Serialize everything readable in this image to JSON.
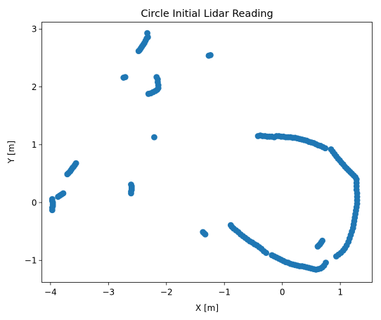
{
  "chart_data": {
    "type": "scatter",
    "title": "Circle Initial Lidar Reading",
    "xlabel": "X [m]",
    "ylabel": "Y [m]",
    "xlim": [
      -4.15,
      1.55
    ],
    "ylim": [
      -1.38,
      3.12
    ],
    "xticks": [
      -4,
      -3,
      -2,
      -1,
      0,
      1
    ],
    "yticks": [
      -1,
      0,
      1,
      2,
      3
    ],
    "grid": false,
    "marker_color": "#1f77b4",
    "series": [
      {
        "points": [
          [
            -2.33,
            2.93
          ],
          [
            -2.32,
            2.86
          ],
          [
            -2.34,
            2.84
          ],
          [
            -2.36,
            2.8
          ],
          [
            -2.38,
            2.76
          ],
          [
            -2.4,
            2.73
          ],
          [
            -2.42,
            2.7
          ],
          [
            -2.44,
            2.67
          ],
          [
            -2.46,
            2.64
          ],
          [
            -2.48,
            2.62
          ],
          [
            -1.27,
            2.54
          ],
          [
            -1.24,
            2.55
          ],
          [
            -2.74,
            2.16
          ],
          [
            -2.71,
            2.17
          ],
          [
            -2.17,
            2.17
          ],
          [
            -2.15,
            2.13
          ],
          [
            -2.15,
            2.08
          ],
          [
            -2.14,
            2.03
          ],
          [
            -2.14,
            1.98
          ],
          [
            -2.16,
            1.95
          ],
          [
            -2.19,
            1.93
          ],
          [
            -2.23,
            1.91
          ],
          [
            -2.27,
            1.89
          ],
          [
            -2.31,
            1.88
          ],
          [
            -2.21,
            1.13
          ],
          [
            -3.56,
            0.68
          ],
          [
            -3.58,
            0.65
          ],
          [
            -3.6,
            0.62
          ],
          [
            -3.62,
            0.6
          ],
          [
            -3.64,
            0.57
          ],
          [
            -3.66,
            0.54
          ],
          [
            -3.69,
            0.51
          ],
          [
            -3.71,
            0.49
          ],
          [
            -3.78,
            0.16
          ],
          [
            -3.81,
            0.14
          ],
          [
            -3.84,
            0.12
          ],
          [
            -3.87,
            0.1
          ],
          [
            -3.97,
            0.06
          ],
          [
            -3.97,
            0.03
          ],
          [
            -3.96,
            0.0
          ],
          [
            -3.96,
            -0.03
          ],
          [
            -3.96,
            -0.06
          ],
          [
            -3.97,
            -0.09
          ],
          [
            -3.97,
            -0.13
          ],
          [
            -2.61,
            0.31
          ],
          [
            -2.6,
            0.28
          ],
          [
            -2.6,
            0.25
          ],
          [
            -2.6,
            0.22
          ],
          [
            -2.61,
            0.19
          ],
          [
            -2.61,
            0.16
          ],
          [
            -1.37,
            -0.51
          ],
          [
            -1.35,
            -0.53
          ],
          [
            -1.33,
            -0.55
          ],
          [
            -0.42,
            1.15
          ],
          [
            -0.38,
            1.16
          ],
          [
            -0.34,
            1.15
          ],
          [
            -0.3,
            1.15
          ],
          [
            -0.26,
            1.14
          ],
          [
            -0.22,
            1.14
          ],
          [
            -0.18,
            1.14
          ],
          [
            -0.14,
            1.13
          ],
          [
            -0.1,
            1.15
          ],
          [
            -0.06,
            1.15
          ],
          [
            -0.02,
            1.14
          ],
          [
            0.02,
            1.14
          ],
          [
            0.06,
            1.13
          ],
          [
            0.1,
            1.13
          ],
          [
            0.14,
            1.13
          ],
          [
            0.18,
            1.12
          ],
          [
            0.22,
            1.12
          ],
          [
            0.26,
            1.11
          ],
          [
            0.3,
            1.1
          ],
          [
            0.34,
            1.09
          ],
          [
            0.38,
            1.08
          ],
          [
            0.42,
            1.07
          ],
          [
            0.46,
            1.05
          ],
          [
            0.5,
            1.04
          ],
          [
            0.54,
            1.03
          ],
          [
            0.58,
            1.01
          ],
          [
            0.62,
            0.99
          ],
          [
            0.66,
            0.98
          ],
          [
            0.7,
            0.96
          ],
          [
            0.74,
            0.94
          ],
          [
            0.84,
            0.92
          ],
          [
            0.87,
            0.88
          ],
          [
            0.9,
            0.84
          ],
          [
            0.93,
            0.8
          ],
          [
            0.96,
            0.76
          ],
          [
            0.99,
            0.73
          ],
          [
            1.02,
            0.69
          ],
          [
            1.05,
            0.66
          ],
          [
            1.08,
            0.62
          ],
          [
            1.11,
            0.59
          ],
          [
            1.14,
            0.56
          ],
          [
            1.17,
            0.53
          ],
          [
            1.2,
            0.5
          ],
          [
            1.23,
            0.47
          ],
          [
            1.26,
            0.44
          ],
          [
            1.28,
            0.4
          ],
          [
            1.28,
            0.34
          ],
          [
            1.28,
            0.28
          ],
          [
            1.28,
            0.22
          ],
          [
            1.29,
            0.16
          ],
          [
            1.29,
            0.1
          ],
          [
            1.29,
            0.04
          ],
          [
            1.29,
            -0.02
          ],
          [
            1.28,
            -0.08
          ],
          [
            1.27,
            -0.14
          ],
          [
            1.26,
            -0.2
          ],
          [
            1.25,
            -0.26
          ],
          [
            1.24,
            -0.32
          ],
          [
            1.23,
            -0.38
          ],
          [
            1.22,
            -0.44
          ],
          [
            1.2,
            -0.5
          ],
          [
            1.18,
            -0.56
          ],
          [
            1.16,
            -0.62
          ],
          [
            1.14,
            -0.68
          ],
          [
            1.11,
            -0.74
          ],
          [
            1.08,
            -0.79
          ],
          [
            1.05,
            -0.83
          ],
          [
            1.01,
            -0.87
          ],
          [
            0.97,
            -0.9
          ],
          [
            0.93,
            -0.93
          ],
          [
            0.69,
            -0.66
          ],
          [
            0.67,
            -0.69
          ],
          [
            0.65,
            -0.72
          ],
          [
            0.63,
            -0.74
          ],
          [
            0.61,
            -0.76
          ],
          [
            0.75,
            -1.04
          ],
          [
            0.72,
            -1.09
          ],
          [
            0.69,
            -1.12
          ],
          [
            0.66,
            -1.14
          ],
          [
            0.62,
            -1.15
          ],
          [
            0.58,
            -1.16
          ],
          [
            0.54,
            -1.15
          ],
          [
            0.5,
            -1.14
          ],
          [
            0.46,
            -1.13
          ],
          [
            0.42,
            -1.12
          ],
          [
            0.38,
            -1.11
          ],
          [
            0.34,
            -1.1
          ],
          [
            0.3,
            -1.1
          ],
          [
            0.26,
            -1.09
          ],
          [
            0.22,
            -1.08
          ],
          [
            0.18,
            -1.07
          ],
          [
            0.14,
            -1.06
          ],
          [
            0.1,
            -1.04
          ],
          [
            0.06,
            -1.03
          ],
          [
            0.02,
            -1.01
          ],
          [
            -0.02,
            -0.99
          ],
          [
            -0.06,
            -0.97
          ],
          [
            -0.1,
            -0.95
          ],
          [
            -0.14,
            -0.93
          ],
          [
            -0.18,
            -0.91
          ],
          [
            -0.28,
            -0.87
          ],
          [
            -0.32,
            -0.84
          ],
          [
            -0.36,
            -0.8
          ],
          [
            -0.4,
            -0.77
          ],
          [
            -0.44,
            -0.74
          ],
          [
            -0.48,
            -0.72
          ],
          [
            -0.52,
            -0.69
          ],
          [
            -0.56,
            -0.67
          ],
          [
            -0.6,
            -0.64
          ],
          [
            -0.64,
            -0.61
          ],
          [
            -0.68,
            -0.58
          ],
          [
            -0.72,
            -0.55
          ],
          [
            -0.76,
            -0.51
          ],
          [
            -0.8,
            -0.48
          ],
          [
            -0.84,
            -0.45
          ],
          [
            -0.87,
            -0.42
          ],
          [
            -0.89,
            -0.39
          ]
        ]
      }
    ]
  }
}
